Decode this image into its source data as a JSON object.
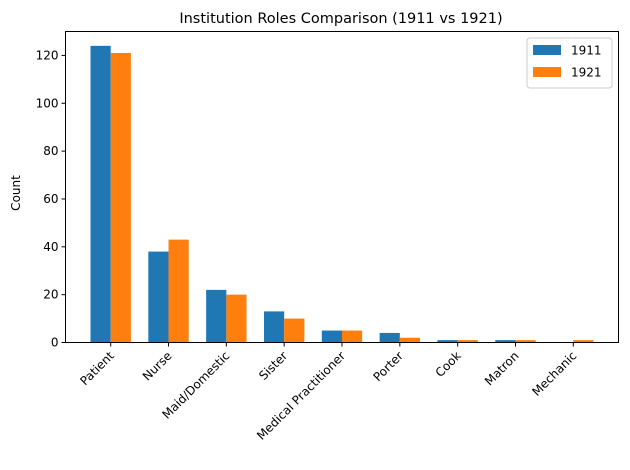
{
  "chart_data": {
    "type": "bar",
    "title": "Institution Roles Comparison (1911 vs 1921)",
    "xlabel": "",
    "ylabel": "Count",
    "ylim": [
      0,
      130
    ],
    "yticks": [
      0,
      20,
      40,
      60,
      80,
      100,
      120
    ],
    "grid": false,
    "legend": "top-right",
    "categories": [
      "Patient",
      "Nurse",
      "Maid/Domestic",
      "Sister",
      "Medical Practitioner",
      "Porter",
      "Cook",
      "Matron",
      "Mechanic"
    ],
    "series": [
      {
        "name": "1911",
        "color": "#1f77b4",
        "values": [
          124,
          38,
          22,
          13,
          5,
          4,
          1,
          1,
          0
        ]
      },
      {
        "name": "1921",
        "color": "#ff7f0e",
        "values": [
          121,
          43,
          20,
          10,
          5,
          2,
          1,
          1,
          1
        ]
      }
    ]
  }
}
